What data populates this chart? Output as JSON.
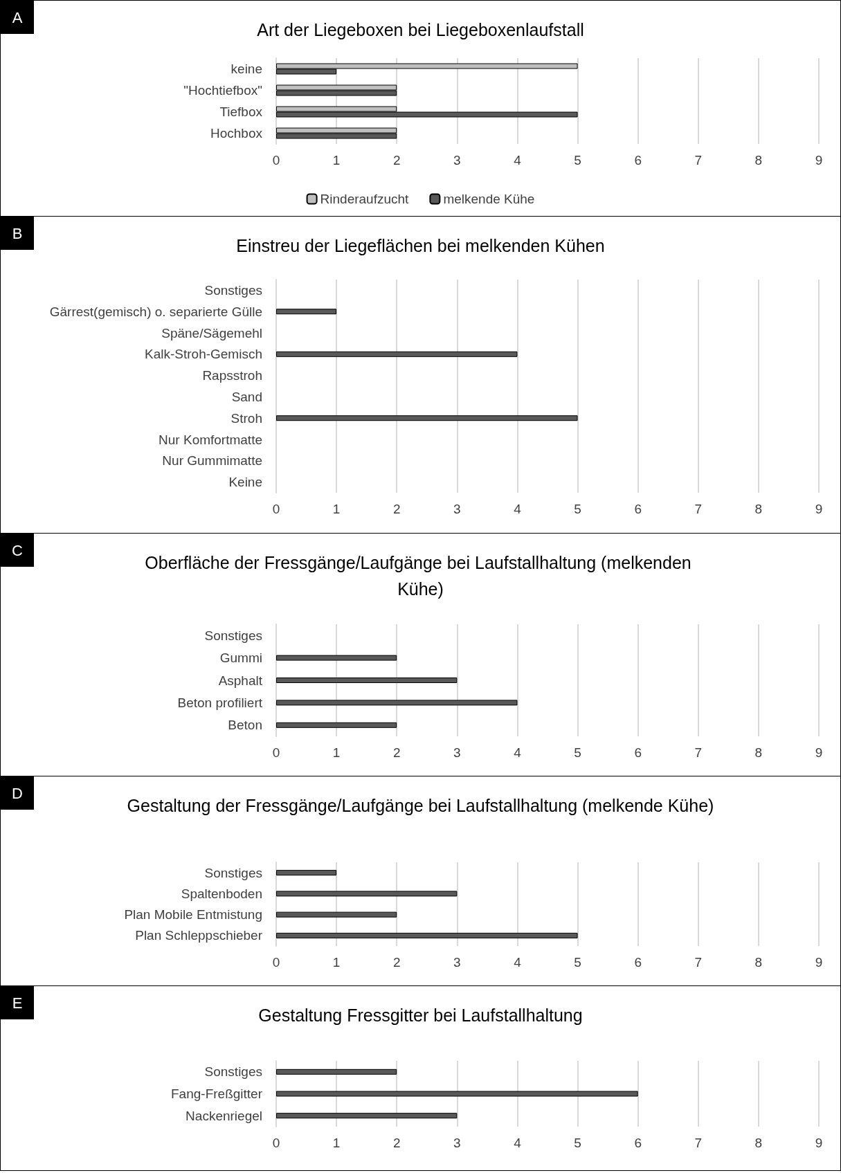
{
  "chart_data": [
    {
      "type": "bar",
      "orientation": "horizontal",
      "title": "Art der Liegeboxen bei Liegeboxenlaufstall",
      "annotations": [
        "A"
      ],
      "categories": [
        "keine",
        "\"Hochtiefbox\"",
        "Tiefbox",
        "Hochbox"
      ],
      "series": [
        {
          "name": "Rinderaufzucht",
          "color": "#bfbfbf",
          "values": [
            5,
            2,
            2,
            2
          ]
        },
        {
          "name": "melkende Kühe",
          "color": "#595959",
          "values": [
            1,
            2,
            5,
            2
          ]
        }
      ],
      "xlim": [
        0,
        9
      ],
      "xticks": [
        0,
        1,
        2,
        3,
        4,
        5,
        6,
        7,
        8,
        9
      ],
      "grid": "x",
      "legend": "bottom"
    },
    {
      "type": "bar",
      "orientation": "horizontal",
      "title": "Einstreu der Liegeflächen bei melkenden Kühen",
      "annotations": [
        "B"
      ],
      "categories": [
        "Sonstiges",
        "Gärrest(gemisch) o. separierte Gülle",
        "Späne/Sägemehl",
        "Kalk-Stroh-Gemisch",
        "Rapsstroh",
        "Sand",
        "Stroh",
        "Nur Komfortmatte",
        "Nur Gummimatte",
        "Keine"
      ],
      "series": [
        {
          "color": "#595959",
          "values": [
            0,
            1,
            0,
            4,
            0,
            0,
            5,
            0,
            0,
            0
          ]
        }
      ],
      "xlim": [
        0,
        9
      ],
      "xticks": [
        0,
        1,
        2,
        3,
        4,
        5,
        6,
        7,
        8,
        9
      ],
      "grid": "x"
    },
    {
      "type": "bar",
      "orientation": "horizontal",
      "title": "Oberfläche der Fressgänge/Laufgänge bei Laufstallhaltung (melkenden Kühe)",
      "annotations": [
        "C"
      ],
      "categories": [
        "Sonstiges",
        "Gummi",
        "Asphalt",
        "Beton profiliert",
        "Beton"
      ],
      "series": [
        {
          "color": "#595959",
          "values": [
            0,
            2,
            3,
            4,
            2
          ]
        }
      ],
      "xlim": [
        0,
        9
      ],
      "xticks": [
        0,
        1,
        2,
        3,
        4,
        5,
        6,
        7,
        8,
        9
      ],
      "grid": "x"
    },
    {
      "type": "bar",
      "orientation": "horizontal",
      "title": "Gestaltung der Fressgänge/Laufgänge bei Laufstallhaltung (melkende Kühe)",
      "annotations": [
        "D"
      ],
      "categories": [
        "Sonstiges",
        "Spaltenboden",
        "Plan Mobile Entmistung",
        "Plan Schleppschieber"
      ],
      "series": [
        {
          "color": "#595959",
          "values": [
            1,
            3,
            2,
            5
          ]
        }
      ],
      "xlim": [
        0,
        9
      ],
      "xticks": [
        0,
        1,
        2,
        3,
        4,
        5,
        6,
        7,
        8,
        9
      ],
      "grid": "x"
    },
    {
      "type": "bar",
      "orientation": "horizontal",
      "title": "Gestaltung Fressgitter bei Laufstallhaltung",
      "annotations": [
        "E"
      ],
      "categories": [
        "Sonstiges",
        "Fang-Freßgitter",
        "Nackenriegel"
      ],
      "series": [
        {
          "color": "#595959",
          "values": [
            2,
            6,
            3
          ]
        }
      ],
      "xlim": [
        0,
        9
      ],
      "xticks": [
        0,
        1,
        2,
        3,
        4,
        5,
        6,
        7,
        8,
        9
      ],
      "grid": "x"
    }
  ]
}
